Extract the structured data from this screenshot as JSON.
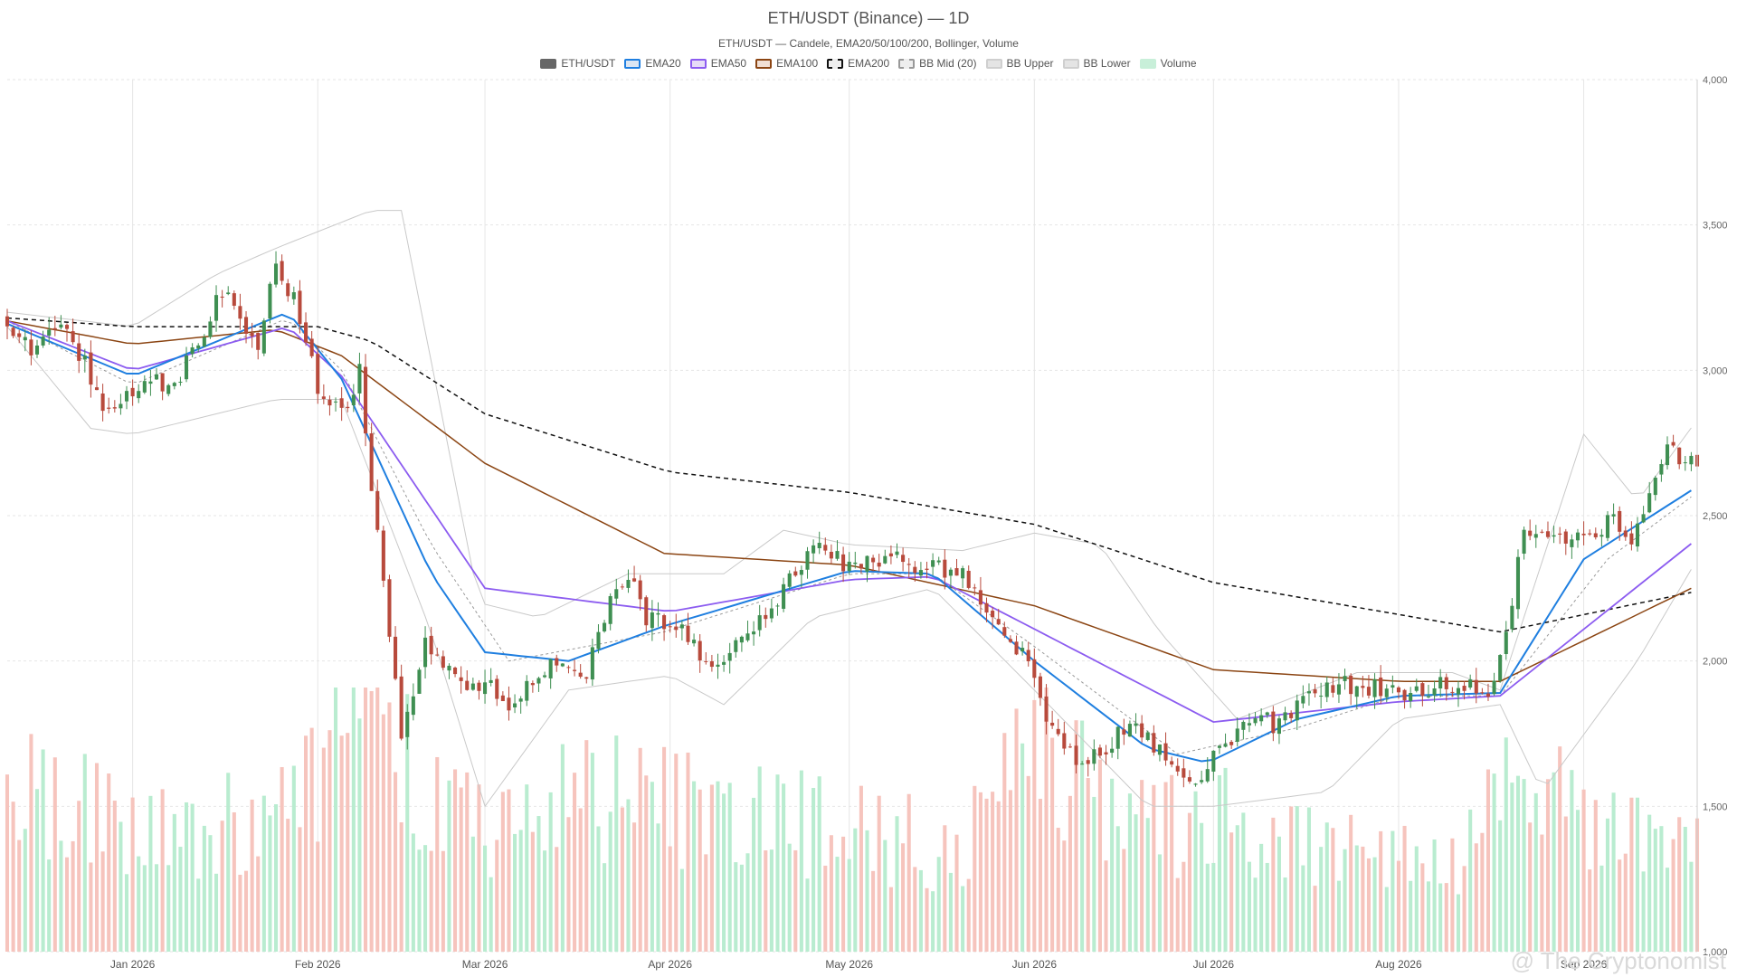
{
  "title": "ETH/USDT (Binance) — 1D",
  "subtitle": "ETH/USDT — Candele, EMA20/50/100/200, Bollinger, Volume",
  "watermark": "@ The Cryptonomist",
  "legend": [
    {
      "label": "ETH/USDT",
      "fill": "#666666",
      "border": "#666666",
      "dashed": false
    },
    {
      "label": "EMA20",
      "fill": "#dbe6f3",
      "border": "#1f7fe0",
      "dashed": false
    },
    {
      "label": "EMA50",
      "fill": "#e6dcf7",
      "border": "#8c5cf0",
      "dashed": false
    },
    {
      "label": "EMA100",
      "fill": "#f1dfd4",
      "border": "#8b4513",
      "dashed": false
    },
    {
      "label": "EMA200",
      "fill": "#eeeeee",
      "border": "#111111",
      "dashed": true
    },
    {
      "label": "BB Mid (20)",
      "fill": "#eeeeee",
      "border": "#999999",
      "dashed": true
    },
    {
      "label": "BB Upper",
      "fill": "#e4e4e4",
      "border": "#cfcfcf",
      "dashed": false
    },
    {
      "label": "BB Lower",
      "fill": "#e4e4e4",
      "border": "#cfcfcf",
      "dashed": false
    },
    {
      "label": "Volume",
      "fill": "#c8efd9",
      "border": "#c8efd9",
      "dashed": false
    }
  ],
  "colors": {
    "up": "#3f8f52",
    "down": "#b84a3c",
    "vol_up": "#b9ecd0",
    "vol_down": "#f6c4bd",
    "ema20": "#1f7fe0",
    "ema50": "#8c5cf0",
    "ema100": "#8b4513",
    "ema200": "#111111",
    "bb_mid": "#999999",
    "bb_band": "#c9c9c9",
    "grid": "#e6e6e6"
  },
  "chart_data": {
    "type": "candlestick",
    "timeframe": "1D",
    "x_range": [
      "2025-12-11",
      "2026-09-20"
    ],
    "x_ticks": [
      {
        "label": "Jan 2026",
        "date": "2026-01-01"
      },
      {
        "label": "Feb 2026",
        "date": "2026-02-01"
      },
      {
        "label": "Mar 2026",
        "date": "2026-03-01"
      },
      {
        "label": "Apr 2026",
        "date": "2026-04-01"
      },
      {
        "label": "May 2026",
        "date": "2026-05-01"
      },
      {
        "label": "Jun 2026",
        "date": "2026-06-01"
      },
      {
        "label": "Jul 2026",
        "date": "2026-07-01"
      },
      {
        "label": "Aug 2026",
        "date": "2026-08-01"
      },
      {
        "label": "Sep 2026",
        "date": "2026-09-01"
      }
    ],
    "y_ticks": [
      "1,000",
      "1,500",
      "2,000",
      "2,500",
      "3,000",
      "3,500",
      "4,000"
    ],
    "y_range": [
      1000,
      4000
    ],
    "close_path": [
      [
        "2025-12-11",
        3180
      ],
      [
        "2025-12-15",
        3050
      ],
      [
        "2025-12-20",
        3180
      ],
      [
        "2025-12-25",
        2980
      ],
      [
        "2025-12-28",
        2850
      ],
      [
        "2026-01-03",
        2950
      ],
      [
        "2026-01-08",
        2960
      ],
      [
        "2026-01-12",
        3100
      ],
      [
        "2026-01-16",
        3280
      ],
      [
        "2026-01-22",
        3100
      ],
      [
        "2026-01-25",
        3350
      ],
      [
        "2026-01-28",
        3260
      ],
      [
        "2026-02-01",
        2950
      ],
      [
        "2026-02-05",
        2850
      ],
      [
        "2026-02-08",
        3000
      ],
      [
        "2026-02-10",
        2600
      ],
      [
        "2026-02-12",
        2300
      ],
      [
        "2026-02-15",
        1750
      ],
      [
        "2026-02-19",
        2050
      ],
      [
        "2026-02-24",
        1950
      ],
      [
        "2026-03-02",
        1900
      ],
      [
        "2026-03-06",
        1850
      ],
      [
        "2026-03-12",
        2000
      ],
      [
        "2026-03-18",
        1950
      ],
      [
        "2026-03-22",
        2200
      ],
      [
        "2026-03-25",
        2300
      ],
      [
        "2026-03-28",
        2150
      ],
      [
        "2026-04-03",
        2100
      ],
      [
        "2026-04-08",
        1950
      ],
      [
        "2026-04-14",
        2100
      ],
      [
        "2026-04-20",
        2250
      ],
      [
        "2026-04-25",
        2400
      ],
      [
        "2026-05-01",
        2330
      ],
      [
        "2026-05-08",
        2350
      ],
      [
        "2026-05-14",
        2330
      ],
      [
        "2026-05-20",
        2300
      ],
      [
        "2026-05-24",
        2180
      ],
      [
        "2026-05-29",
        2050
      ],
      [
        "2026-06-01",
        1950
      ],
      [
        "2026-06-04",
        1750
      ],
      [
        "2026-06-08",
        1650
      ],
      [
        "2026-06-12",
        1680
      ],
      [
        "2026-06-17",
        1800
      ],
      [
        "2026-06-22",
        1700
      ],
      [
        "2026-06-28",
        1600
      ],
      [
        "2026-07-02",
        1700
      ],
      [
        "2026-07-08",
        1800
      ],
      [
        "2026-07-12",
        1780
      ],
      [
        "2026-07-18",
        1900
      ],
      [
        "2026-07-24",
        1920
      ],
      [
        "2026-07-30",
        1900
      ],
      [
        "2026-08-04",
        1890
      ],
      [
        "2026-08-10",
        1920
      ],
      [
        "2026-08-16",
        1900
      ],
      [
        "2026-08-19",
        2100
      ],
      [
        "2026-08-22",
        2450
      ],
      [
        "2026-08-26",
        2400
      ],
      [
        "2026-09-01",
        2420
      ],
      [
        "2026-09-06",
        2480
      ],
      [
        "2026-09-09",
        2420
      ],
      [
        "2026-09-12",
        2580
      ],
      [
        "2026-09-15",
        2720
      ],
      [
        "2026-09-20",
        2670
      ]
    ],
    "volume_path": [
      [
        "2025-12-11",
        0.6
      ],
      [
        "2026-01-15",
        0.45
      ],
      [
        "2026-02-01",
        0.6
      ],
      [
        "2026-02-10",
        1.1
      ],
      [
        "2026-02-20",
        0.6
      ],
      [
        "2026-03-01",
        0.5
      ],
      [
        "2026-03-25",
        0.6
      ],
      [
        "2026-04-15",
        0.5
      ],
      [
        "2026-05-20",
        0.4
      ],
      [
        "2026-06-03",
        0.8
      ],
      [
        "2026-06-15",
        0.45
      ],
      [
        "2026-07-01",
        0.5
      ],
      [
        "2026-08-10",
        0.3
      ],
      [
        "2026-08-20",
        0.6
      ],
      [
        "2026-09-20",
        0.4
      ]
    ],
    "ema200_path": [
      [
        "2025-12-11",
        3180
      ],
      [
        "2026-01-01",
        3150
      ],
      [
        "2026-02-01",
        3150
      ],
      [
        "2026-02-10",
        3100
      ],
      [
        "2026-03-01",
        2850
      ],
      [
        "2026-04-01",
        2650
      ],
      [
        "2026-05-01",
        2580
      ],
      [
        "2026-06-01",
        2470
      ],
      [
        "2026-07-01",
        2270
      ],
      [
        "2026-08-01",
        2160
      ],
      [
        "2026-08-18",
        2100
      ],
      [
        "2026-09-20",
        2240
      ]
    ],
    "ema100_path": [
      [
        "2025-12-11",
        3170
      ],
      [
        "2026-01-01",
        3090
      ],
      [
        "2026-01-25",
        3140
      ],
      [
        "2026-02-05",
        3050
      ],
      [
        "2026-03-01",
        2680
      ],
      [
        "2026-03-31",
        2370
      ],
      [
        "2026-05-01",
        2330
      ],
      [
        "2026-06-01",
        2190
      ],
      [
        "2026-07-01",
        1970
      ],
      [
        "2026-08-01",
        1930
      ],
      [
        "2026-08-18",
        1930
      ],
      [
        "2026-09-20",
        2260
      ]
    ],
    "ema50_path": [
      [
        "2025-12-11",
        3170
      ],
      [
        "2026-01-01",
        3000
      ],
      [
        "2026-01-27",
        3150
      ],
      [
        "2026-02-05",
        2980
      ],
      [
        "2026-03-01",
        2250
      ],
      [
        "2026-04-01",
        2170
      ],
      [
        "2026-05-01",
        2280
      ],
      [
        "2026-05-15",
        2290
      ],
      [
        "2026-06-01",
        2110
      ],
      [
        "2026-07-01",
        1790
      ],
      [
        "2026-08-01",
        1860
      ],
      [
        "2026-08-18",
        1880
      ],
      [
        "2026-09-20",
        2420
      ]
    ],
    "ema20_path": [
      [
        "2025-12-11",
        3160
      ],
      [
        "2026-01-01",
        2980
      ],
      [
        "2026-01-27",
        3200
      ],
      [
        "2026-02-05",
        2970
      ],
      [
        "2026-02-20",
        2300
      ],
      [
        "2026-03-01",
        2030
      ],
      [
        "2026-03-15",
        2000
      ],
      [
        "2026-03-31",
        2120
      ],
      [
        "2026-05-01",
        2310
      ],
      [
        "2026-05-15",
        2300
      ],
      [
        "2026-06-01",
        2000
      ],
      [
        "2026-06-20",
        1700
      ],
      [
        "2026-06-30",
        1650
      ],
      [
        "2026-07-15",
        1800
      ],
      [
        "2026-08-01",
        1880
      ],
      [
        "2026-08-18",
        1890
      ],
      [
        "2026-09-01",
        2350
      ],
      [
        "2026-09-20",
        2600
      ]
    ],
    "bb_mid_path": [
      [
        "2025-12-11",
        3170
      ],
      [
        "2026-01-01",
        2950
      ],
      [
        "2026-01-27",
        3180
      ],
      [
        "2026-02-05",
        3000
      ],
      [
        "2026-02-20",
        2400
      ],
      [
        "2026-03-05",
        2000
      ],
      [
        "2026-03-31",
        2100
      ],
      [
        "2026-05-01",
        2300
      ],
      [
        "2026-05-15",
        2300
      ],
      [
        "2026-06-01",
        2050
      ],
      [
        "2026-06-25",
        1680
      ],
      [
        "2026-07-15",
        1770
      ],
      [
        "2026-08-01",
        1880
      ],
      [
        "2026-08-18",
        1880
      ],
      [
        "2026-09-05",
        2350
      ],
      [
        "2026-09-20",
        2580
      ]
    ],
    "bb_upper_path": [
      [
        "2025-12-11",
        3200
      ],
      [
        "2026-01-01",
        3150
      ],
      [
        "2026-01-15",
        3330
      ],
      [
        "2026-01-25",
        3420
      ],
      [
        "2026-02-10",
        3550
      ],
      [
        "2026-02-15",
        3550
      ],
      [
        "2026-02-28",
        2200
      ],
      [
        "2026-03-10",
        2150
      ],
      [
        "2026-03-25",
        2300
      ],
      [
        "2026-04-10",
        2300
      ],
      [
        "2026-04-20",
        2450
      ],
      [
        "2026-05-01",
        2400
      ],
      [
        "2026-05-20",
        2380
      ],
      [
        "2026-06-01",
        2440
      ],
      [
        "2026-06-12",
        2400
      ],
      [
        "2026-06-22",
        2100
      ],
      [
        "2026-07-05",
        1800
      ],
      [
        "2026-07-25",
        1960
      ],
      [
        "2026-08-10",
        1960
      ],
      [
        "2026-08-18",
        1900
      ],
      [
        "2026-09-01",
        2780
      ],
      [
        "2026-09-10",
        2550
      ],
      [
        "2026-09-20",
        2830
      ]
    ],
    "bb_lower_path": [
      [
        "2025-12-11",
        3150
      ],
      [
        "2025-12-25",
        2800
      ],
      [
        "2026-01-01",
        2780
      ],
      [
        "2026-01-15",
        2850
      ],
      [
        "2026-01-25",
        2900
      ],
      [
        "2026-02-05",
        2900
      ],
      [
        "2026-02-20",
        2100
      ],
      [
        "2026-03-01",
        1500
      ],
      [
        "2026-03-15",
        1900
      ],
      [
        "2026-04-01",
        1950
      ],
      [
        "2026-04-10",
        1850
      ],
      [
        "2026-04-25",
        2150
      ],
      [
        "2026-05-15",
        2250
      ],
      [
        "2026-06-01",
        1900
      ],
      [
        "2026-06-20",
        1500
      ],
      [
        "2026-07-01",
        1500
      ],
      [
        "2026-07-20",
        1550
      ],
      [
        "2026-08-01",
        1800
      ],
      [
        "2026-08-18",
        1850
      ],
      [
        "2026-08-25",
        1550
      ],
      [
        "2026-09-10",
        2000
      ],
      [
        "2026-09-20",
        2350
      ]
    ]
  }
}
